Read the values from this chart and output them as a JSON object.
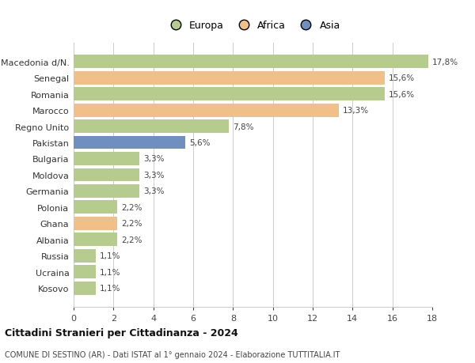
{
  "categories": [
    "Macedonia d/N.",
    "Senegal",
    "Romania",
    "Marocco",
    "Regno Unito",
    "Pakistan",
    "Bulgaria",
    "Moldova",
    "Germania",
    "Polonia",
    "Ghana",
    "Albania",
    "Russia",
    "Ucraina",
    "Kosovo"
  ],
  "values": [
    17.8,
    15.6,
    15.6,
    13.3,
    7.8,
    5.6,
    3.3,
    3.3,
    3.3,
    2.2,
    2.2,
    2.2,
    1.1,
    1.1,
    1.1
  ],
  "labels": [
    "17,8%",
    "15,6%",
    "15,6%",
    "13,3%",
    "7,8%",
    "5,6%",
    "3,3%",
    "3,3%",
    "3,3%",
    "2,2%",
    "2,2%",
    "2,2%",
    "1,1%",
    "1,1%",
    "1,1%"
  ],
  "colors": [
    "#b5cc8e",
    "#f0c088",
    "#b5cc8e",
    "#f0c088",
    "#b5cc8e",
    "#6e8fbf",
    "#b5cc8e",
    "#b5cc8e",
    "#b5cc8e",
    "#b5cc8e",
    "#f0c088",
    "#b5cc8e",
    "#b5cc8e",
    "#b5cc8e",
    "#b5cc8e"
  ],
  "legend_labels": [
    "Europa",
    "Africa",
    "Asia"
  ],
  "legend_colors": [
    "#b5cc8e",
    "#f0c088",
    "#6e8fbf"
  ],
  "title": "Cittadini Stranieri per Cittadinanza - 2024",
  "subtitle": "COMUNE DI SESTINO (AR) - Dati ISTAT al 1° gennaio 2024 - Elaborazione TUTTITALIA.IT",
  "xlim": [
    0,
    18
  ],
  "xticks": [
    0,
    2,
    4,
    6,
    8,
    10,
    12,
    14,
    16,
    18
  ],
  "background_color": "#ffffff",
  "grid_color": "#cccccc"
}
